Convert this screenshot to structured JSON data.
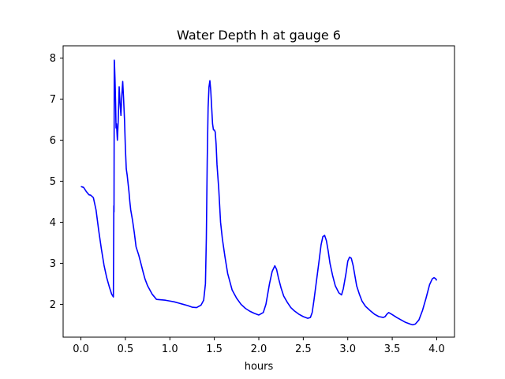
{
  "chart_data": {
    "type": "line",
    "title": "Water Depth h at gauge 6",
    "xlabel": "hours",
    "ylabel": "",
    "xlim": [
      -0.2,
      4.2
    ],
    "ylim": [
      1.2,
      8.3
    ],
    "xticks": [
      0.0,
      0.5,
      1.0,
      1.5,
      2.0,
      2.5,
      3.0,
      3.5,
      4.0
    ],
    "xtick_labels": [
      "0.0",
      "0.5",
      "1.0",
      "1.5",
      "2.0",
      "2.5",
      "3.0",
      "3.5",
      "4.0"
    ],
    "yticks": [
      2,
      3,
      4,
      5,
      6,
      7,
      8
    ],
    "ytick_labels": [
      "2",
      "3",
      "4",
      "5",
      "6",
      "7",
      "8"
    ],
    "grid": false,
    "legend": "none",
    "series": [
      {
        "color": "#0000ff",
        "x": [
          0.0,
          0.03,
          0.06,
          0.09,
          0.11,
          0.14,
          0.17,
          0.2,
          0.23,
          0.26,
          0.29,
          0.32,
          0.345,
          0.365,
          0.37,
          0.372,
          0.375,
          0.377,
          0.383,
          0.39,
          0.395,
          0.4,
          0.41,
          0.42,
          0.43,
          0.44,
          0.45,
          0.46,
          0.47,
          0.48,
          0.49,
          0.5,
          0.51,
          0.52,
          0.53,
          0.54,
          0.55,
          0.56,
          0.58,
          0.6,
          0.62,
          0.65,
          0.68,
          0.7,
          0.72,
          0.75,
          0.8,
          0.85,
          0.9,
          0.95,
          1.0,
          1.05,
          1.1,
          1.15,
          1.2,
          1.25,
          1.3,
          1.35,
          1.38,
          1.4,
          1.41,
          1.42,
          1.43,
          1.44,
          1.45,
          1.46,
          1.47,
          1.48,
          1.49,
          1.5,
          1.51,
          1.52,
          1.53,
          1.55,
          1.56,
          1.57,
          1.59,
          1.62,
          1.65,
          1.7,
          1.75,
          1.8,
          1.85,
          1.9,
          1.95,
          2.0,
          2.05,
          2.08,
          2.1,
          2.12,
          2.15,
          2.18,
          2.2,
          2.22,
          2.25,
          2.28,
          2.32,
          2.36,
          2.4,
          2.45,
          2.5,
          2.55,
          2.58,
          2.6,
          2.62,
          2.65,
          2.68,
          2.7,
          2.72,
          2.74,
          2.76,
          2.78,
          2.8,
          2.83,
          2.86,
          2.9,
          2.93,
          2.95,
          2.98,
          3.0,
          3.02,
          3.04,
          3.06,
          3.08,
          3.1,
          3.13,
          3.16,
          3.2,
          3.25,
          3.3,
          3.35,
          3.4,
          3.42,
          3.44,
          3.46,
          3.5,
          3.55,
          3.6,
          3.65,
          3.7,
          3.73,
          3.76,
          3.8,
          3.84,
          3.88,
          3.92,
          3.95,
          3.97,
          3.99,
          4.0
        ],
        "y": [
          4.87,
          4.85,
          4.75,
          4.67,
          4.66,
          4.6,
          4.3,
          3.8,
          3.35,
          2.95,
          2.65,
          2.42,
          2.25,
          2.18,
          4.4,
          4.25,
          7.95,
          7.9,
          7.5,
          6.9,
          6.3,
          6.4,
          6.0,
          6.5,
          7.3,
          6.9,
          6.6,
          7.1,
          7.43,
          7.0,
          6.5,
          5.8,
          5.3,
          5.15,
          4.95,
          4.75,
          4.5,
          4.3,
          4.05,
          3.75,
          3.4,
          3.2,
          2.95,
          2.78,
          2.62,
          2.45,
          2.25,
          2.12,
          2.11,
          2.1,
          2.08,
          2.06,
          2.03,
          2.0,
          1.97,
          1.93,
          1.92,
          1.98,
          2.1,
          2.5,
          3.6,
          5.5,
          6.8,
          7.3,
          7.45,
          7.2,
          6.8,
          6.4,
          6.25,
          6.25,
          6.2,
          5.9,
          5.4,
          4.8,
          4.4,
          4.0,
          3.6,
          3.15,
          2.75,
          2.35,
          2.15,
          2.0,
          1.9,
          1.83,
          1.78,
          1.74,
          1.8,
          2.0,
          2.25,
          2.5,
          2.8,
          2.94,
          2.85,
          2.65,
          2.4,
          2.2,
          2.05,
          1.92,
          1.84,
          1.76,
          1.7,
          1.66,
          1.68,
          1.8,
          2.1,
          2.6,
          3.1,
          3.45,
          3.65,
          3.68,
          3.55,
          3.3,
          3.0,
          2.7,
          2.45,
          2.28,
          2.23,
          2.38,
          2.75,
          3.05,
          3.15,
          3.12,
          2.95,
          2.7,
          2.45,
          2.25,
          2.08,
          1.95,
          1.85,
          1.76,
          1.7,
          1.68,
          1.7,
          1.76,
          1.8,
          1.75,
          1.68,
          1.62,
          1.56,
          1.52,
          1.5,
          1.52,
          1.62,
          1.85,
          2.15,
          2.48,
          2.62,
          2.65,
          2.62,
          2.58
        ]
      }
    ]
  }
}
